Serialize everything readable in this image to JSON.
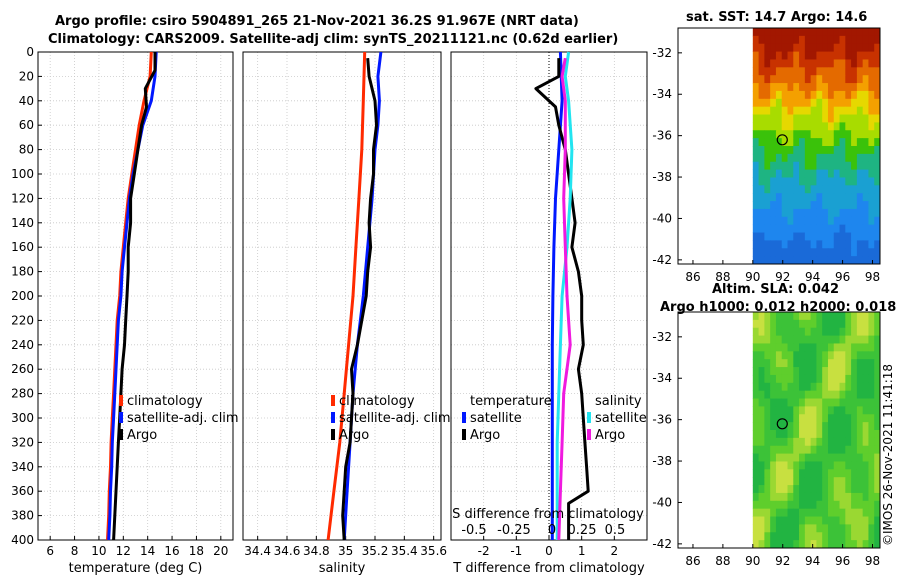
{
  "header": {
    "title_line1": "Argo profile: csiro 5904891_265 21-Nov-2021 36.2S 91.967E (NRT data)",
    "title_line2": "Climatology: CARS2009. Satellite-adj clim: synTS_20211121.nc (0.62d earlier)"
  },
  "credit": "©IMOS 26-Nov-2021 11:41:18",
  "colors": {
    "climatology": "#ff2a00",
    "satellite": "#0018ff",
    "argo": "#000000",
    "s_satellite": "#22e4f0",
    "s_argo": "#f01adf",
    "grid": "#c8c8c8"
  },
  "chart_data": [
    {
      "type": "line",
      "id": "temperature",
      "xlabel": "temperature (deg C)",
      "ylabel": "",
      "xlim": [
        5,
        21
      ],
      "ylim": [
        400,
        0
      ],
      "xticks": [
        6,
        8,
        10,
        12,
        14,
        16,
        18,
        20
      ],
      "yticks": [
        0,
        20,
        40,
        60,
        80,
        100,
        120,
        140,
        160,
        180,
        200,
        220,
        240,
        260,
        280,
        300,
        320,
        340,
        360,
        380,
        400
      ],
      "legend": [
        "climatology",
        "satellite-adj. clim",
        "Argo"
      ],
      "series": [
        {
          "name": "climatology",
          "points": [
            [
              14.3,
              0
            ],
            [
              14.2,
              20
            ],
            [
              13.7,
              40
            ],
            [
              13.3,
              60
            ],
            [
              13.0,
              80
            ],
            [
              12.7,
              100
            ],
            [
              12.4,
              120
            ],
            [
              12.2,
              140
            ],
            [
              12.0,
              160
            ],
            [
              11.8,
              180
            ],
            [
              11.7,
              200
            ],
            [
              11.5,
              220
            ],
            [
              11.4,
              240
            ],
            [
              11.3,
              260
            ],
            [
              11.2,
              280
            ],
            [
              11.1,
              300
            ],
            [
              11.0,
              320
            ],
            [
              10.95,
              340
            ],
            [
              10.85,
              360
            ],
            [
              10.8,
              380
            ],
            [
              10.7,
              400
            ]
          ]
        },
        {
          "name": "satellite-adj. clim",
          "points": [
            [
              14.7,
              0
            ],
            [
              14.6,
              20
            ],
            [
              14.3,
              40
            ],
            [
              13.6,
              60
            ],
            [
              13.2,
              80
            ],
            [
              12.8,
              100
            ],
            [
              12.5,
              120
            ],
            [
              12.3,
              140
            ],
            [
              12.1,
              160
            ],
            [
              11.9,
              180
            ],
            [
              11.8,
              200
            ],
            [
              11.6,
              220
            ],
            [
              11.5,
              240
            ],
            [
              11.4,
              260
            ],
            [
              11.3,
              280
            ],
            [
              11.2,
              300
            ],
            [
              11.1,
              320
            ],
            [
              11.05,
              340
            ],
            [
              10.95,
              360
            ],
            [
              10.9,
              380
            ],
            [
              10.8,
              400
            ]
          ]
        },
        {
          "name": "Argo",
          "points": [
            [
              14.6,
              0
            ],
            [
              14.6,
              15
            ],
            [
              13.8,
              30
            ],
            [
              13.9,
              45
            ],
            [
              13.5,
              60
            ],
            [
              13.2,
              80
            ],
            [
              12.9,
              100
            ],
            [
              12.6,
              120
            ],
            [
              12.6,
              140
            ],
            [
              12.4,
              160
            ],
            [
              12.4,
              180
            ],
            [
              12.3,
              200
            ],
            [
              12.2,
              220
            ],
            [
              12.1,
              240
            ],
            [
              11.9,
              260
            ],
            [
              11.8,
              280
            ],
            [
              11.7,
              300
            ],
            [
              11.6,
              320
            ],
            [
              11.5,
              340
            ],
            [
              11.4,
              360
            ],
            [
              11.3,
              380
            ],
            [
              11.2,
              400
            ]
          ]
        }
      ]
    },
    {
      "type": "line",
      "id": "salinity",
      "xlabel": "salinity",
      "xlim": [
        34.3,
        35.65
      ],
      "ylim": [
        400,
        0
      ],
      "xticks": [
        34.4,
        34.6,
        34.8,
        35,
        35.2,
        35.4,
        35.6
      ],
      "xticklabels": [
        "34.4",
        "34.6",
        "34.8",
        "35",
        "35.2",
        "35.4",
        "35.6"
      ],
      "legend": [
        "climatology",
        "satellite-adj. clim",
        "Argo"
      ],
      "series": [
        {
          "name": "climatology",
          "points": [
            [
              35.13,
              0
            ],
            [
              35.12,
              40
            ],
            [
              35.11,
              80
            ],
            [
              35.09,
              120
            ],
            [
              35.07,
              160
            ],
            [
              35.05,
              200
            ],
            [
              35.02,
              240
            ],
            [
              34.99,
              280
            ],
            [
              34.96,
              320
            ],
            [
              34.92,
              360
            ],
            [
              34.88,
              400
            ]
          ]
        },
        {
          "name": "satellite-adj. clim",
          "points": [
            [
              35.24,
              0
            ],
            [
              35.22,
              20
            ],
            [
              35.23,
              40
            ],
            [
              35.22,
              60
            ],
            [
              35.2,
              80
            ],
            [
              35.18,
              120
            ],
            [
              35.15,
              160
            ],
            [
              35.12,
              200
            ],
            [
              35.08,
              240
            ],
            [
              35.05,
              280
            ],
            [
              35.03,
              320
            ],
            [
              35.01,
              360
            ],
            [
              34.99,
              400
            ]
          ]
        },
        {
          "name": "Argo",
          "points": [
            [
              35.15,
              5
            ],
            [
              35.16,
              20
            ],
            [
              35.2,
              40
            ],
            [
              35.21,
              60
            ],
            [
              35.19,
              80
            ],
            [
              35.19,
              100
            ],
            [
              35.17,
              120
            ],
            [
              35.16,
              140
            ],
            [
              35.17,
              160
            ],
            [
              35.15,
              180
            ],
            [
              35.14,
              200
            ],
            [
              35.11,
              220
            ],
            [
              35.08,
              240
            ],
            [
              35.04,
              260
            ],
            [
              35.05,
              280
            ],
            [
              35.04,
              300
            ],
            [
              35.03,
              320
            ],
            [
              35.0,
              340
            ],
            [
              34.99,
              360
            ],
            [
              34.98,
              380
            ],
            [
              34.99,
              400
            ]
          ]
        }
      ]
    },
    {
      "type": "line",
      "id": "difference",
      "xlabel": "T difference from climatology",
      "xlim": [
        -3,
        3
      ],
      "ylim": [
        400,
        0
      ],
      "xticks": [
        -2,
        -1,
        0,
        1,
        2
      ],
      "xticklabels": [
        "-2",
        "-1",
        "0",
        "1",
        "2"
      ],
      "secondary_axis_label": "S difference from climatology",
      "secondary_ticks": [
        "-0.5",
        "-0.25",
        "0",
        "0.25",
        "0.5"
      ],
      "legend_temperature": {
        "title": "temperature",
        "items": [
          "satellite",
          "Argo"
        ]
      },
      "legend_salinity": {
        "title": "salinity",
        "items": [
          "satellite",
          "Argo"
        ]
      },
      "series": [
        {
          "name": "temperature satellite",
          "points": [
            [
              0.35,
              0
            ],
            [
              0.4,
              40
            ],
            [
              0.3,
              80
            ],
            [
              0.2,
              120
            ],
            [
              0.15,
              160
            ],
            [
              0.12,
              200
            ],
            [
              0.1,
              240
            ],
            [
              0.1,
              280
            ],
            [
              0.1,
              320
            ],
            [
              0.1,
              360
            ],
            [
              0.1,
              400
            ]
          ]
        },
        {
          "name": "temperature Argo",
          "points": [
            [
              0.3,
              5
            ],
            [
              0.3,
              20
            ],
            [
              -0.4,
              30
            ],
            [
              0.2,
              45
            ],
            [
              0.3,
              60
            ],
            [
              0.5,
              80
            ],
            [
              0.6,
              100
            ],
            [
              0.7,
              120
            ],
            [
              0.8,
              140
            ],
            [
              0.7,
              160
            ],
            [
              0.9,
              180
            ],
            [
              1.0,
              200
            ],
            [
              1.0,
              220
            ],
            [
              1.05,
              240
            ],
            [
              0.9,
              260
            ],
            [
              1.0,
              280
            ],
            [
              1.05,
              300
            ],
            [
              1.1,
              320
            ],
            [
              1.15,
              340
            ],
            [
              1.2,
              360
            ],
            [
              0.6,
              370
            ],
            [
              0.6,
              400
            ]
          ]
        },
        {
          "name": "salinity satellite",
          "points": [
            [
              0.6,
              0
            ],
            [
              0.5,
              20
            ],
            [
              0.6,
              40
            ],
            [
              0.7,
              80
            ],
            [
              0.65,
              120
            ],
            [
              0.55,
              160
            ],
            [
              0.4,
              200
            ],
            [
              0.35,
              240
            ],
            [
              0.3,
              280
            ],
            [
              0.25,
              320
            ],
            [
              0.25,
              400
            ]
          ]
        },
        {
          "name": "salinity Argo",
          "points": [
            [
              0.5,
              5
            ],
            [
              0.4,
              20
            ],
            [
              0.5,
              40
            ],
            [
              0.5,
              80
            ],
            [
              0.45,
              120
            ],
            [
              0.5,
              160
            ],
            [
              0.55,
              200
            ],
            [
              0.6,
              220
            ],
            [
              0.65,
              240
            ],
            [
              0.45,
              280
            ],
            [
              0.4,
              320
            ],
            [
              0.35,
              360
            ],
            [
              0.3,
              400
            ]
          ]
        }
      ]
    },
    {
      "type": "heatmap",
      "id": "sst-map",
      "title": "sat. SST: 14.7 Argo: 14.6",
      "xlim": [
        85,
        98.5
      ],
      "ylim": [
        -42.2,
        -30.8
      ],
      "xticks": [
        86,
        88,
        90,
        92,
        94,
        96,
        98
      ],
      "yticks": [
        -32,
        -34,
        -36,
        -38,
        -40,
        -42
      ],
      "data_lon_range": [
        90,
        98.5
      ],
      "argo_marker": [
        91.97,
        -36.2
      ]
    },
    {
      "type": "heatmap",
      "id": "sla-map",
      "title_line1": "Altim. SLA: 0.042",
      "title_line2": "Argo h1000: 0.012 h2000: 0.018",
      "xlim": [
        85,
        98.5
      ],
      "ylim": [
        -42.2,
        -30.8
      ],
      "xticks": [
        86,
        88,
        90,
        92,
        94,
        96,
        98
      ],
      "yticks": [
        -32,
        -34,
        -36,
        -38,
        -40,
        -42
      ],
      "data_lon_range": [
        90,
        98.5
      ],
      "argo_marker": [
        91.97,
        -36.2
      ]
    }
  ]
}
